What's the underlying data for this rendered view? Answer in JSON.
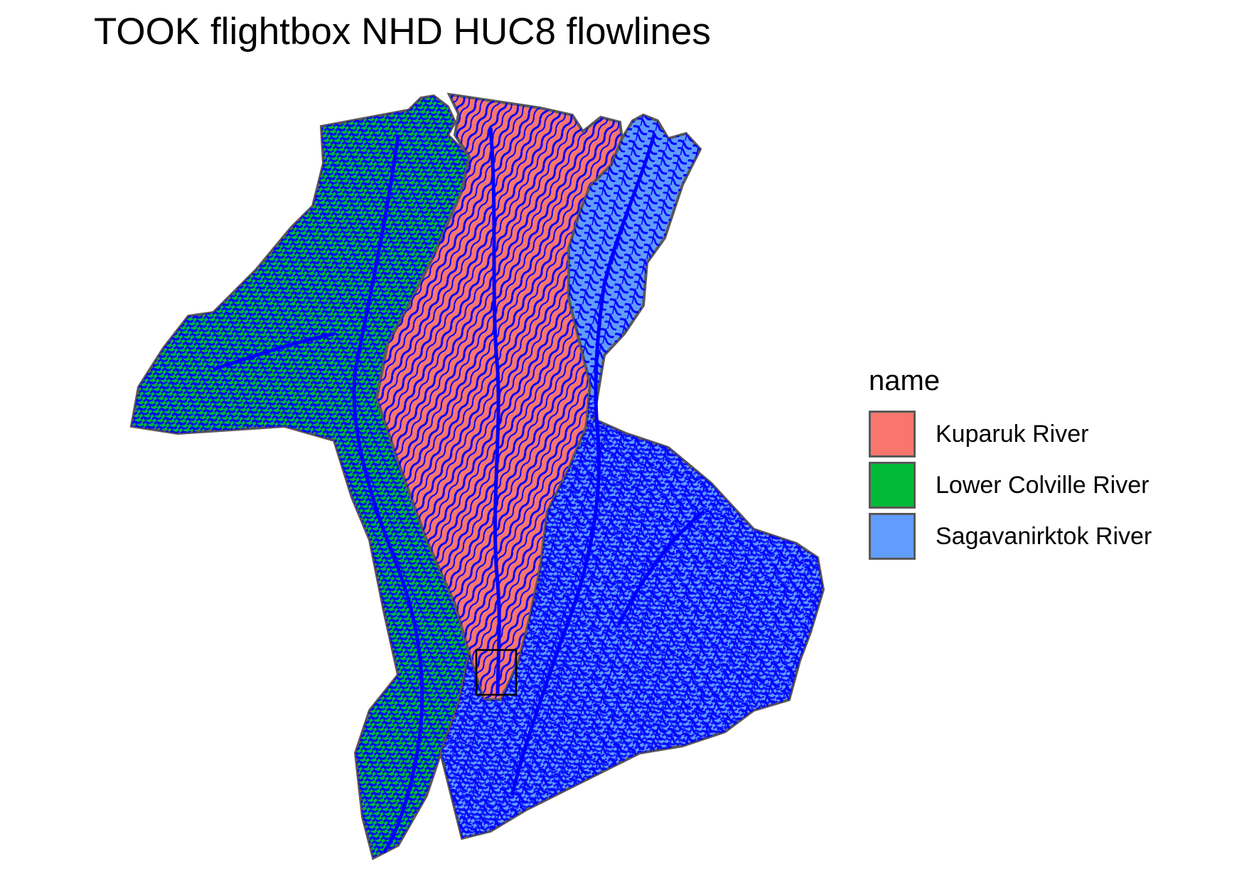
{
  "title": "TOOK flightbox NHD HUC8 flowlines",
  "legend": {
    "title": "name",
    "items": [
      {
        "label": "Kuparuk River",
        "color": "#F8766D"
      },
      {
        "label": "Lower Colville River",
        "color": "#00BA38"
      },
      {
        "label": "Sagavanirktok River",
        "color": "#619CFF"
      }
    ]
  },
  "colors": {
    "flowlines": "#0000FF",
    "boundary": "#595959",
    "flightbox": "#000000"
  }
}
